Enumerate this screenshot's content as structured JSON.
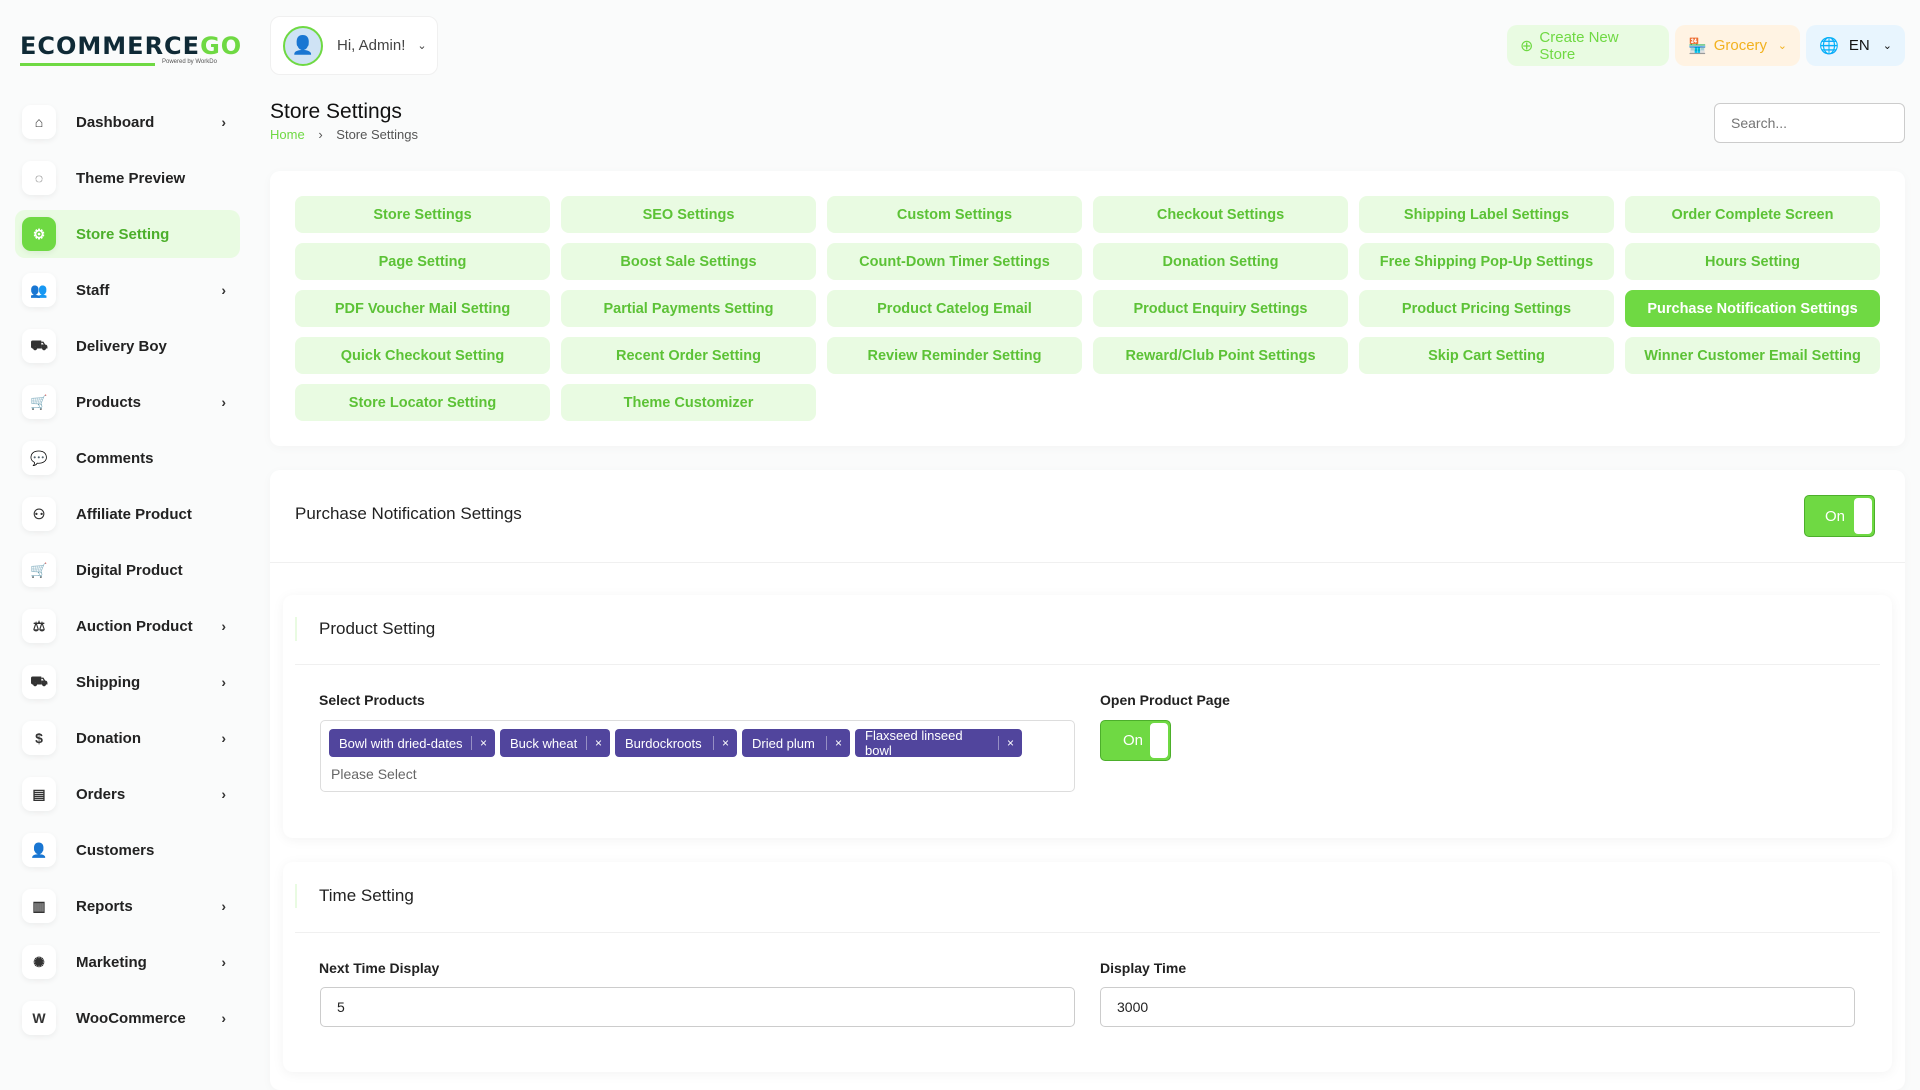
{
  "brand": {
    "logo_text": "ECOMMERCEGO",
    "powered_by": "Powered by WorkDo",
    "accent": "#6fd943",
    "tag_color": "#51459d"
  },
  "header": {
    "greeting": "Hi, Admin!",
    "create_store": "Create New Store",
    "store": "Grocery",
    "language": "EN",
    "search_placeholder": "Search..."
  },
  "sidebar": {
    "items": [
      {
        "label": "Dashboard",
        "icon": "home-icon",
        "chevron": true
      },
      {
        "label": "Theme Preview",
        "icon": "theme-icon",
        "chevron": false
      },
      {
        "label": "Store Setting",
        "icon": "gear-icon",
        "chevron": false,
        "active": true
      },
      {
        "label": "Staff",
        "icon": "users-icon",
        "chevron": true
      },
      {
        "label": "Delivery Boy",
        "icon": "truck-icon",
        "chevron": false
      },
      {
        "label": "Products",
        "icon": "cart-icon",
        "chevron": true
      },
      {
        "label": "Comments",
        "icon": "comment-icon",
        "chevron": false
      },
      {
        "label": "Affiliate Product",
        "icon": "affiliate-icon",
        "chevron": false
      },
      {
        "label": "Digital Product",
        "icon": "cart-icon",
        "chevron": false
      },
      {
        "label": "Auction Product",
        "icon": "auction-icon",
        "chevron": true
      },
      {
        "label": "Shipping",
        "icon": "truck-icon",
        "chevron": true
      },
      {
        "label": "Donation",
        "icon": "coin-icon",
        "chevron": true
      },
      {
        "label": "Orders",
        "icon": "box-icon",
        "chevron": true
      },
      {
        "label": "Customers",
        "icon": "user-icon",
        "chevron": false
      },
      {
        "label": "Reports",
        "icon": "chart-icon",
        "chevron": true
      },
      {
        "label": "Marketing",
        "icon": "marketing-icon",
        "chevron": true
      },
      {
        "label": "WooCommerce",
        "icon": "woo-icon",
        "chevron": true
      }
    ]
  },
  "page": {
    "title": "Store Settings",
    "breadcrumb": [
      "Home",
      "Store Settings"
    ]
  },
  "tabs": [
    "Store Settings",
    "SEO Settings",
    "Custom Settings",
    "Checkout Settings",
    "Shipping Label Settings",
    "Order Complete Screen",
    "Page Setting",
    "Boost Sale Settings",
    "Count-Down Timer Settings",
    "Donation Setting",
    "Free Shipping Pop-Up Settings",
    "Hours Setting",
    "PDF Voucher Mail Setting",
    "Partial Payments Setting",
    "Product Catelog Email",
    "Product Enquiry Settings",
    "Product Pricing Settings",
    "Purchase Notification Settings",
    "Quick Checkout Setting",
    "Recent Order Setting",
    "Review Reminder Setting",
    "Reward/Club Point Settings",
    "Skip Cart Setting",
    "Winner Customer Email Setting",
    "Store Locator Setting",
    "Theme Customizer"
  ],
  "active_tab": "Purchase Notification Settings",
  "settings": {
    "title": "Purchase Notification Settings",
    "enabled_label": "On",
    "product_setting": {
      "title": "Product Setting",
      "select_label": "Select Products",
      "selected": [
        "Bowl with dried-dates",
        "Buck wheat",
        "Burdockroots",
        "Dried plum",
        "Flaxseed linseed bowl"
      ],
      "remove": "×",
      "placeholder": "Please Select",
      "open_page_label": "Open Product Page",
      "open_page_value": "On"
    },
    "time_setting": {
      "title": "Time Setting",
      "next_label": "Next Time Display",
      "next_value": "5",
      "display_label": "Display Time",
      "display_value": "3000"
    }
  }
}
